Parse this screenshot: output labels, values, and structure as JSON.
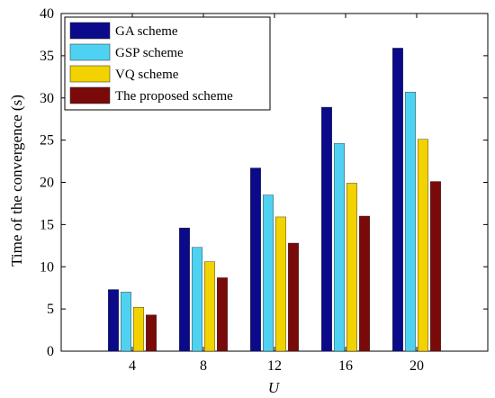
{
  "chart_data": {
    "type": "bar",
    "xlabel": "U",
    "ylabel": "Time of the convergence (s)",
    "categories": [
      "4",
      "8",
      "12",
      "16",
      "20"
    ],
    "ylim": [
      0,
      40
    ],
    "yticks": [
      0,
      5,
      10,
      15,
      20,
      25,
      30,
      35,
      40
    ],
    "xlim": [
      0,
      24
    ],
    "grid": false,
    "legend_position": "top-left",
    "series": [
      {
        "name": "GA scheme",
        "color": "#0a0a8a",
        "values": [
          7.3,
          14.6,
          21.7,
          28.9,
          35.9
        ]
      },
      {
        "name": "GSP scheme",
        "color": "#4fd2f2",
        "values": [
          7.0,
          12.3,
          18.5,
          24.6,
          30.7
        ]
      },
      {
        "name": "VQ scheme",
        "color": "#f2d200",
        "values": [
          5.2,
          10.6,
          15.9,
          19.9,
          25.1
        ]
      },
      {
        "name": "The proposed scheme",
        "color": "#7a0a0a",
        "values": [
          4.3,
          8.7,
          12.8,
          16.0,
          20.1
        ]
      }
    ]
  }
}
